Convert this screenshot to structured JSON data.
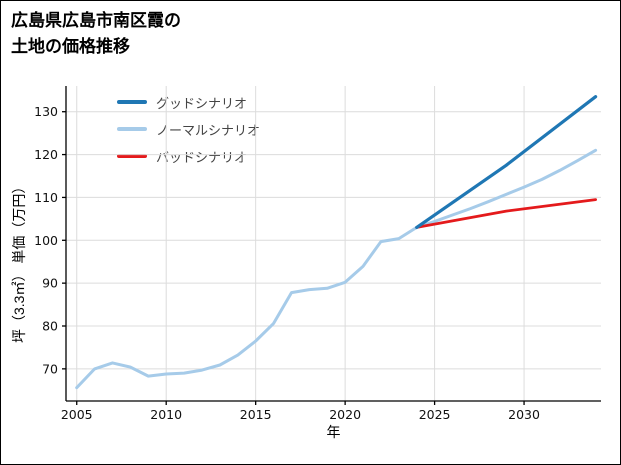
{
  "header": {
    "title_line1": "広島県広島市南区霞の",
    "title_line2": "土地の価格推移"
  },
  "chart_data": {
    "type": "line",
    "title": "広島県広島市南区霞の土地の価格推移",
    "xlabel": "年",
    "ylabel": "坪（3.3㎡） 単価（万円）",
    "x_ticks": [
      2005,
      2010,
      2015,
      2020,
      2025,
      2030
    ],
    "y_ticks": [
      70,
      80,
      90,
      100,
      110,
      120,
      130
    ],
    "xlim": [
      2004.4,
      2034.3
    ],
    "ylim": [
      62.5,
      136
    ],
    "grid": true,
    "legend_position": "upper-left",
    "series": [
      {
        "id": "good",
        "name": "グッドシナリオ",
        "color": "#1f77b4",
        "width": 3.2,
        "z": 3,
        "x": [
          2024,
          2029,
          2034
        ],
        "y": [
          103,
          117.5,
          133.5
        ]
      },
      {
        "id": "normal",
        "name": "ノーマルシナリオ",
        "color": "#a6cbe9",
        "width": 3,
        "z": 1,
        "x": [
          2005,
          2006,
          2007,
          2008,
          2009,
          2010,
          2011,
          2012,
          2013,
          2014,
          2015,
          2016,
          2017,
          2018,
          2019,
          2020,
          2021,
          2022,
          2023,
          2024,
          2025,
          2026,
          2027,
          2028,
          2029,
          2030,
          2031,
          2032,
          2033,
          2034
        ],
        "y": [
          65.6,
          70,
          71.4,
          70.4,
          68.3,
          68.8,
          69,
          69.7,
          70.9,
          73.2,
          76.5,
          80.6,
          87.8,
          88.5,
          88.8,
          90.2,
          93.9,
          99.7,
          100.4,
          103,
          104.4,
          105.9,
          107.4,
          109,
          110.7,
          112.4,
          114.2,
          116.3,
          118.6,
          121
        ]
      },
      {
        "id": "bad",
        "name": "バッドシナリオ",
        "color": "#e41a1c",
        "width": 2.8,
        "z": 2,
        "x": [
          2024,
          2029,
          2034
        ],
        "y": [
          103,
          106.8,
          109.5
        ]
      }
    ]
  }
}
